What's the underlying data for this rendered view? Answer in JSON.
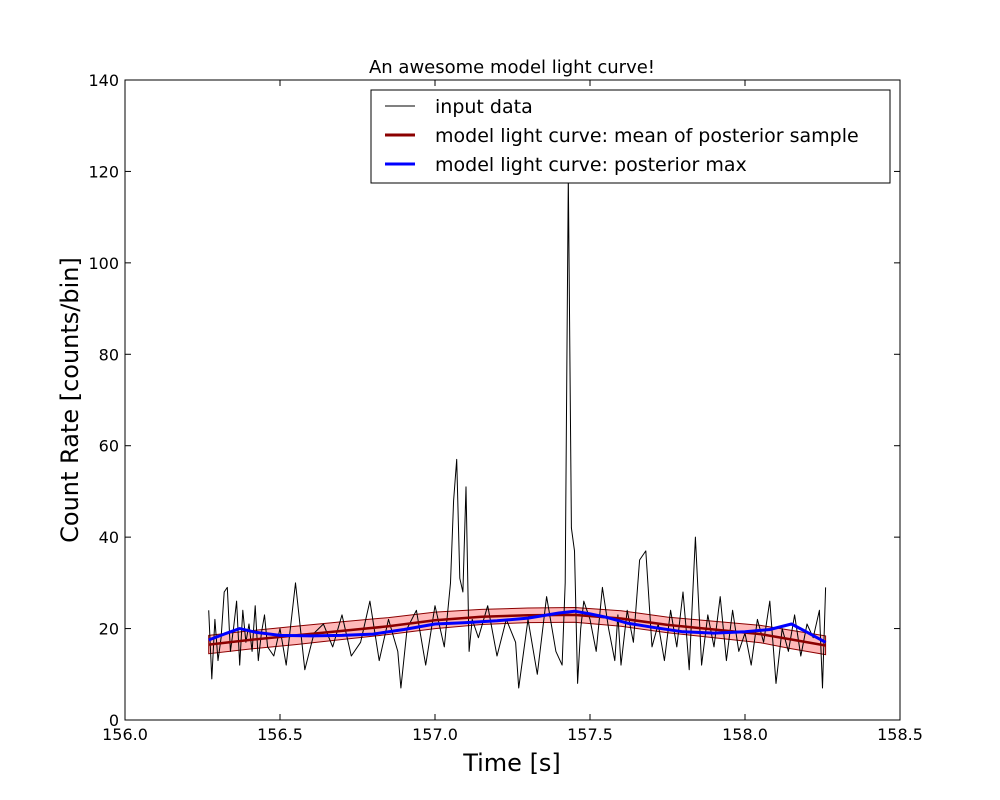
{
  "chart_data": {
    "type": "line",
    "title": "An awesome model light curve!",
    "xlabel": "Time [s]",
    "ylabel": "Count Rate [counts/bin]",
    "xlim": [
      156.0,
      158.5
    ],
    "ylim": [
      0,
      140
    ],
    "xticks": [
      "156.0",
      "156.5",
      "157.0",
      "157.5",
      "158.0",
      "158.5"
    ],
    "yticks": [
      "0",
      "20",
      "40",
      "60",
      "80",
      "100",
      "120",
      "140"
    ],
    "legend_position": "top-right",
    "grid": false,
    "series": [
      {
        "name": "input data",
        "color": "#000000",
        "x": [
          156.27,
          156.28,
          156.29,
          156.3,
          156.31,
          156.32,
          156.33,
          156.34,
          156.35,
          156.36,
          156.37,
          156.38,
          156.39,
          156.4,
          156.41,
          156.42,
          156.43,
          156.44,
          156.45,
          156.46,
          156.48,
          156.5,
          156.52,
          156.55,
          156.58,
          156.61,
          156.64,
          156.67,
          156.7,
          156.73,
          156.76,
          156.79,
          156.82,
          156.85,
          156.88,
          156.89,
          156.91,
          156.94,
          156.97,
          157.0,
          157.03,
          157.05,
          157.06,
          157.07,
          157.08,
          157.09,
          157.1,
          157.11,
          157.12,
          157.14,
          157.17,
          157.2,
          157.23,
          157.26,
          157.27,
          157.3,
          157.33,
          157.36,
          157.39,
          157.41,
          157.42,
          157.43,
          157.44,
          157.45,
          157.46,
          157.47,
          157.48,
          157.5,
          157.52,
          157.54,
          157.56,
          157.58,
          157.59,
          157.6,
          157.62,
          157.64,
          157.66,
          157.68,
          157.7,
          157.72,
          157.74,
          157.76,
          157.78,
          157.8,
          157.81,
          157.82,
          157.84,
          157.86,
          157.88,
          157.9,
          157.92,
          157.94,
          157.96,
          157.98,
          158.0,
          158.02,
          158.04,
          158.06,
          158.08,
          158.1,
          158.12,
          158.14,
          158.16,
          158.18,
          158.2,
          158.22,
          158.24,
          158.25,
          158.26
        ],
        "y": [
          24,
          9,
          22,
          13,
          18,
          28,
          29,
          15,
          20,
          26,
          12,
          24,
          17,
          21,
          15,
          25,
          13,
          19,
          23,
          16,
          14,
          20,
          12,
          30,
          11,
          19,
          21,
          16,
          23,
          14,
          17,
          26,
          13,
          22,
          15,
          7,
          20,
          24,
          12,
          25,
          16,
          30,
          48,
          57,
          31,
          28,
          51,
          15,
          22,
          18,
          25,
          14,
          22,
          17,
          7,
          22,
          10,
          27,
          15,
          12,
          30,
          119,
          42,
          37,
          8,
          20,
          26,
          22,
          15,
          29,
          20,
          13,
          23,
          12,
          24,
          17,
          35,
          37,
          16,
          21,
          13,
          24,
          16,
          28,
          20,
          11,
          40,
          12,
          23,
          16,
          27,
          13,
          24,
          15,
          19,
          12,
          22,
          17,
          26,
          8,
          20,
          15,
          23,
          14,
          21,
          18,
          24,
          7,
          29
        ]
      },
      {
        "name": "model light curve: mean of posterior sample",
        "color": "#8b0000",
        "band_color": "#ff8080",
        "x": [
          156.27,
          156.4,
          156.55,
          156.7,
          156.85,
          157.0,
          157.15,
          157.3,
          157.45,
          157.6,
          157.75,
          157.9,
          158.05,
          158.15,
          158.26
        ],
        "y": [
          16.5,
          17.5,
          18.5,
          19.5,
          20.5,
          21.8,
          22.6,
          22.9,
          23.0,
          22.2,
          20.8,
          19.8,
          18.8,
          17.6,
          16.3
        ],
        "y_lower": [
          14.5,
          15.5,
          16.5,
          17.6,
          18.7,
          20.0,
          20.9,
          21.3,
          21.4,
          20.5,
          19.1,
          18.0,
          16.9,
          15.6,
          14.3
        ],
        "y_upper": [
          18.5,
          19.5,
          20.5,
          21.5,
          22.4,
          23.6,
          24.2,
          24.5,
          24.6,
          23.9,
          22.5,
          21.6,
          20.7,
          19.6,
          18.4
        ]
      },
      {
        "name": "model light curve: posterior max",
        "color": "#0000ff",
        "x": [
          156.27,
          156.32,
          156.37,
          156.42,
          156.5,
          156.6,
          156.7,
          156.8,
          156.9,
          157.0,
          157.1,
          157.2,
          157.3,
          157.4,
          157.45,
          157.5,
          157.55,
          157.62,
          157.7,
          157.8,
          157.9,
          158.0,
          158.08,
          158.15,
          158.2,
          158.26
        ],
        "y": [
          17.5,
          18.8,
          20.0,
          19.2,
          18.5,
          18.4,
          18.5,
          18.8,
          19.8,
          21.0,
          21.3,
          21.7,
          22.3,
          23.4,
          23.8,
          23.2,
          22.5,
          21.2,
          20.3,
          19.3,
          19.0,
          19.3,
          19.8,
          21.0,
          19.2,
          17.0
        ]
      }
    ]
  }
}
